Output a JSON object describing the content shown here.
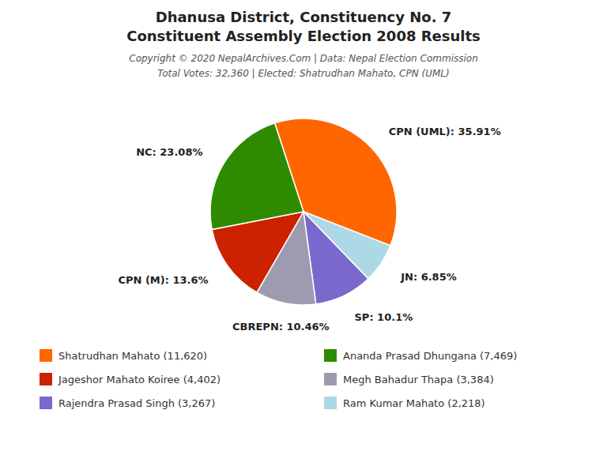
{
  "chart_data": {
    "type": "pie",
    "title": [
      "Dhanusa District, Constituency No. 7",
      "Constituent Assembly Election 2008 Results"
    ],
    "annotations": [
      "Copyright © 2020 NepalArchives.Com | Data: Nepal Election Commission",
      "Total Votes: 32,360 | Elected: Shatrudhan Mahato, CPN (UML)"
    ],
    "categories": [
      "CPN (UML)",
      "JN",
      "SP",
      "CBREPN",
      "CPN (M)",
      "NC"
    ],
    "values": [
      35.91,
      6.85,
      10.1,
      10.46,
      13.6,
      23.08
    ],
    "value_labels": [
      "CPN (UML): 35.91%",
      "JN: 6.85%",
      "SP: 10.1%",
      "CBREPN: 10.46%",
      "CPN (M): 13.6%",
      "NC: 23.08%"
    ],
    "colors": [
      "#FF6600",
      "#ADD8E6",
      "#7B68CC",
      "#9E9AB0",
      "#CC2200",
      "#2E8B00"
    ],
    "data_labels": true,
    "legend": "bottom",
    "legend_entries": [
      {
        "label": "Shatrudhan Mahato (11,620)",
        "color": "#FF6600"
      },
      {
        "label": "Jageshor Mahato Koiree (4,402)",
        "color": "#CC2200"
      },
      {
        "label": "Rajendra Prasad Singh (3,267)",
        "color": "#7B68CC"
      },
      {
        "label": "Ananda Prasad Dhungana (7,469)",
        "color": "#2E8B00"
      },
      {
        "label": "Megh Bahadur Thapa (3,384)",
        "color": "#9E9AB0"
      },
      {
        "label": "Ram Kumar Mahato (2,218)",
        "color": "#ADD8E6"
      }
    ]
  }
}
